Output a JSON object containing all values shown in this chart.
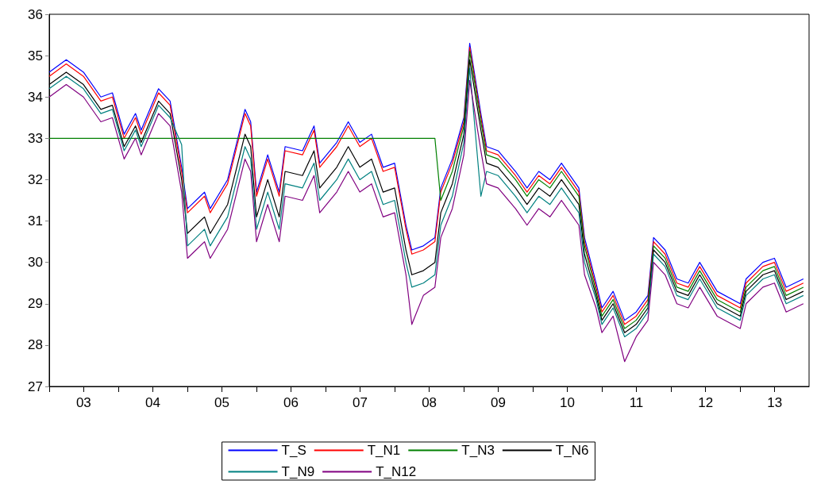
{
  "chart_data": {
    "type": "line",
    "x": [
      "2003-01",
      "2003-04",
      "2003-07",
      "2003-10",
      "2003-12",
      "2004-02",
      "2004-04",
      "2004-05",
      "2004-08",
      "2004-10",
      "2004-12",
      "2005-01",
      "2005-04",
      "2005-05",
      "2005-08",
      "2005-11",
      "2005-12",
      "2006-01",
      "2006-03",
      "2006-05",
      "2006-06",
      "2006-09",
      "2006-11",
      "2006-12",
      "2007-03",
      "2007-05",
      "2007-07",
      "2007-09",
      "2007-11",
      "2008-01",
      "2008-03",
      "2008-04",
      "2008-06",
      "2008-08",
      "2008-09",
      "2008-11",
      "2009-01",
      "2009-02",
      "2009-04",
      "2009-05",
      "2009-07",
      "2009-10",
      "2009-12",
      "2010-02",
      "2010-04",
      "2010-06",
      "2010-09",
      "2010-10",
      "2010-12",
      "2011-01",
      "2011-03",
      "2011-05",
      "2011-07",
      "2011-09",
      "2011-10",
      "2011-12",
      "2012-02",
      "2012-04",
      "2012-06",
      "2012-09",
      "2013-01",
      "2013-02",
      "2013-05",
      "2013-07",
      "2013-09",
      "2013-12"
    ],
    "xlim": [
      "2003-01-01",
      "2013-12-31"
    ],
    "xticks": [
      {
        "value": "2003-01-01",
        "label": null
      },
      {
        "value": "2003-07-02",
        "label": "03"
      },
      {
        "value": "2004-01-01",
        "label": null
      },
      {
        "value": "2004-07-02",
        "label": "04"
      },
      {
        "value": "2005-01-01",
        "label": null
      },
      {
        "value": "2005-07-02",
        "label": "05"
      },
      {
        "value": "2006-01-01",
        "label": null
      },
      {
        "value": "2006-07-02",
        "label": "06"
      },
      {
        "value": "2007-01-01",
        "label": null
      },
      {
        "value": "2007-07-02",
        "label": "07"
      },
      {
        "value": "2008-01-01",
        "label": null
      },
      {
        "value": "2008-07-02",
        "label": "08"
      },
      {
        "value": "2009-01-01",
        "label": null
      },
      {
        "value": "2009-07-02",
        "label": "09"
      },
      {
        "value": "2010-01-01",
        "label": null
      },
      {
        "value": "2010-07-02",
        "label": "10"
      },
      {
        "value": "2011-01-01",
        "label": null
      },
      {
        "value": "2011-07-02",
        "label": "11"
      },
      {
        "value": "2012-01-01",
        "label": null
      },
      {
        "value": "2012-07-02",
        "label": "12"
      },
      {
        "value": "2013-01-01",
        "label": null
      },
      {
        "value": "2013-07-02",
        "label": "13"
      }
    ],
    "ylim": [
      27,
      36
    ],
    "yticks": [
      27,
      28,
      29,
      30,
      31,
      32,
      33,
      34,
      35,
      36
    ],
    "legend": "bottom",
    "marker": "none",
    "series": [
      {
        "name": "T_S",
        "color": "#0000ff",
        "values": [
          34.6,
          34.9,
          34.6,
          34.0,
          34.1,
          33.1,
          33.6,
          33.2,
          34.2,
          33.9,
          32.3,
          31.3,
          31.7,
          31.3,
          32.0,
          33.7,
          33.4,
          31.7,
          32.6,
          31.7,
          32.8,
          32.7,
          33.3,
          32.4,
          32.9,
          33.4,
          32.9,
          33.1,
          32.3,
          32.4,
          30.9,
          30.3,
          30.4,
          30.6,
          31.8,
          32.5,
          33.5,
          35.3,
          33.6,
          32.8,
          32.7,
          32.2,
          31.8,
          32.2,
          32.0,
          32.4,
          31.8,
          30.6,
          29.5,
          28.9,
          29.3,
          28.6,
          28.8,
          29.2,
          30.6,
          30.3,
          29.6,
          29.5,
          30.0,
          29.3,
          29.0,
          29.6,
          30.0,
          30.1,
          29.4,
          29.6
        ]
      },
      {
        "name": "T_N1",
        "color": "#ff0000",
        "values": [
          34.5,
          34.8,
          34.5,
          33.9,
          34.0,
          33.0,
          33.5,
          33.1,
          34.1,
          33.8,
          32.2,
          31.2,
          31.6,
          31.2,
          31.9,
          33.6,
          33.3,
          31.6,
          32.5,
          31.6,
          32.7,
          32.6,
          33.2,
          32.3,
          32.8,
          33.3,
          32.8,
          33.0,
          32.2,
          32.3,
          30.8,
          30.2,
          30.3,
          30.5,
          31.7,
          32.4,
          33.4,
          35.2,
          33.5,
          32.7,
          32.6,
          32.1,
          31.7,
          32.1,
          31.9,
          32.3,
          31.7,
          30.5,
          29.4,
          28.8,
          29.2,
          28.5,
          28.7,
          29.1,
          30.5,
          30.2,
          29.5,
          29.4,
          29.9,
          29.2,
          28.9,
          29.5,
          29.9,
          30.0,
          29.3,
          29.5
        ]
      },
      {
        "name": "T_N3",
        "color": "#008000",
        "values": [
          33,
          33,
          33,
          33,
          33,
          33,
          33,
          33,
          33,
          33,
          33,
          33,
          33,
          33,
          33,
          33,
          33,
          33,
          33,
          33,
          33,
          33,
          33,
          33,
          33,
          33,
          33,
          33,
          33,
          33,
          33,
          33,
          33,
          33,
          31.5,
          32.2,
          33.3,
          35.1,
          33.4,
          32.6,
          32.5,
          32.0,
          31.6,
          32.0,
          31.8,
          32.2,
          31.6,
          30.4,
          29.3,
          28.7,
          29.1,
          28.4,
          28.6,
          29.0,
          30.4,
          30.1,
          29.4,
          29.3,
          29.8,
          29.1,
          28.8,
          29.4,
          29.8,
          29.9,
          29.2,
          29.4
        ]
      },
      {
        "name": "T_N6",
        "color": "#000000",
        "values": [
          34.3,
          34.6,
          34.3,
          33.7,
          33.8,
          32.8,
          33.3,
          32.9,
          33.9,
          33.6,
          32.0,
          30.7,
          31.1,
          30.7,
          31.4,
          33.1,
          32.8,
          31.1,
          32.0,
          31.1,
          32.2,
          32.1,
          32.7,
          31.8,
          32.3,
          32.8,
          32.3,
          32.5,
          31.7,
          31.8,
          30.3,
          29.7,
          29.8,
          30.0,
          31.2,
          31.9,
          33.1,
          34.9,
          33.2,
          32.4,
          32.3,
          31.8,
          31.4,
          31.8,
          31.6,
          32.0,
          31.4,
          30.2,
          29.2,
          28.6,
          29.0,
          28.3,
          28.5,
          28.9,
          30.3,
          30.0,
          29.3,
          29.2,
          29.7,
          29.0,
          28.7,
          29.3,
          29.7,
          29.8,
          29.1,
          29.3
        ]
      },
      {
        "name": "T_N9",
        "color": "#008080",
        "values": [
          34.2,
          34.5,
          34.2,
          33.6,
          33.7,
          32.7,
          33.2,
          32.8,
          33.8,
          33.5,
          32.85,
          30.4,
          30.8,
          30.4,
          31.1,
          32.8,
          32.5,
          30.8,
          31.7,
          30.8,
          31.9,
          31.8,
          32.4,
          31.5,
          32.0,
          32.5,
          32.0,
          32.2,
          31.4,
          31.5,
          30.0,
          29.4,
          29.5,
          29.7,
          30.9,
          31.6,
          32.9,
          34.7,
          31.6,
          32.2,
          32.1,
          31.6,
          31.2,
          31.6,
          31.4,
          31.8,
          31.2,
          30.0,
          29.1,
          28.5,
          28.9,
          28.2,
          28.4,
          28.8,
          30.2,
          29.9,
          29.2,
          29.1,
          29.6,
          28.9,
          28.6,
          29.2,
          29.6,
          29.7,
          29.0,
          29.2
        ]
      },
      {
        "name": "T_N12",
        "color": "#800080",
        "values": [
          34.0,
          34.3,
          34.0,
          33.4,
          33.5,
          32.5,
          33.0,
          32.6,
          33.6,
          33.3,
          31.7,
          30.1,
          30.5,
          30.1,
          30.8,
          32.5,
          32.2,
          30.5,
          31.4,
          30.5,
          31.6,
          31.5,
          32.1,
          31.2,
          31.7,
          32.2,
          31.7,
          31.9,
          31.1,
          31.2,
          29.7,
          28.5,
          29.2,
          29.4,
          30.6,
          31.3,
          32.6,
          34.4,
          32.7,
          31.9,
          31.8,
          31.3,
          30.9,
          31.3,
          31.1,
          31.5,
          30.9,
          29.7,
          28.9,
          28.3,
          28.7,
          27.6,
          28.2,
          28.6,
          30.0,
          29.7,
          29.0,
          28.9,
          29.4,
          28.7,
          28.4,
          29.0,
          29.4,
          29.5,
          28.8,
          29.0
        ]
      }
    ]
  }
}
